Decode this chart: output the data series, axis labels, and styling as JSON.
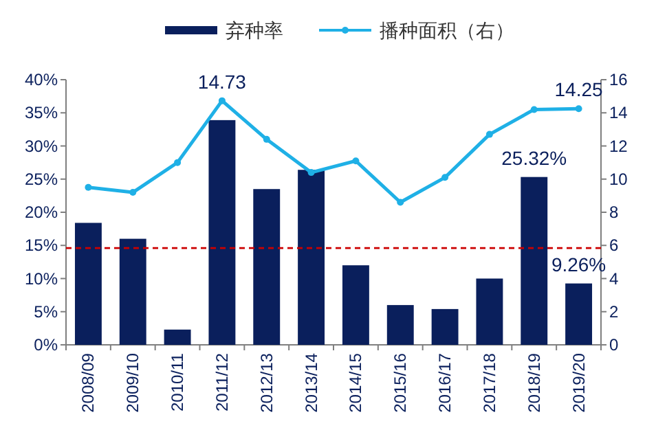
{
  "chart_data": {
    "type": "bar",
    "categories": [
      "2008/09",
      "2009/10",
      "2010/11",
      "2011/12",
      "2012/13",
      "2013/14",
      "2014/15",
      "2015/16",
      "2016/17",
      "2017/18",
      "2018/19",
      "2019/20"
    ],
    "series": [
      {
        "name": "弃种率",
        "color": "#0a1f5c",
        "values": [
          18.4,
          16.0,
          2.3,
          33.9,
          23.5,
          26.4,
          12.0,
          6.0,
          5.4,
          10.0,
          25.32,
          9.26
        ],
        "value_labels": [
          null,
          null,
          null,
          null,
          null,
          null,
          null,
          null,
          null,
          null,
          "25.32%",
          "9.26%"
        ]
      },
      {
        "name": "播种面积（右）",
        "type": "line",
        "axis": "y2",
        "color": "#1fb0e6",
        "marker": "circle",
        "values": [
          9.5,
          9.2,
          11.0,
          14.73,
          12.4,
          10.4,
          11.1,
          8.6,
          10.1,
          12.7,
          14.2,
          14.25
        ],
        "value_labels": [
          null,
          null,
          null,
          "14.73",
          null,
          null,
          null,
          null,
          null,
          null,
          null,
          "14.25"
        ]
      }
    ],
    "ylim": [
      0,
      40
    ],
    "yticks": [
      {
        "value": 0,
        "label": "0%"
      },
      {
        "value": 5,
        "label": "5%"
      },
      {
        "value": 10,
        "label": "10%"
      },
      {
        "value": 15,
        "label": "15%"
      },
      {
        "value": 20,
        "label": "20%"
      },
      {
        "value": 25,
        "label": "25%"
      },
      {
        "value": 30,
        "label": "30%"
      },
      {
        "value": 35,
        "label": "35%"
      },
      {
        "value": 40,
        "label": "40%"
      }
    ],
    "y2lim": [
      0,
      16
    ],
    "y2ticks": [
      0,
      2,
      4,
      6,
      8,
      10,
      12,
      14,
      16
    ],
    "ref_lines": [
      {
        "axis": "y",
        "value": 14.6,
        "color": "#cc0000",
        "line_style": "dashed"
      }
    ],
    "legend": "top",
    "grid": false
  }
}
